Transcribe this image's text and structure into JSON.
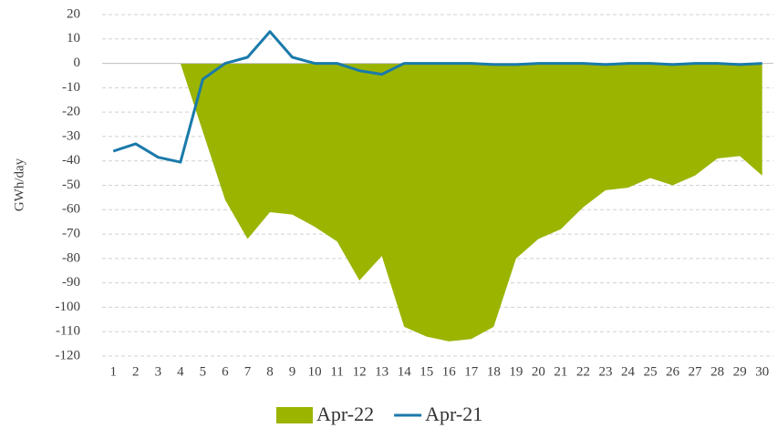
{
  "chart_data": {
    "type": "area-line",
    "y_label": "GWh/day",
    "categories": [
      "1",
      "2",
      "3",
      "4",
      "5",
      "6",
      "7",
      "8",
      "9",
      "10",
      "11",
      "12",
      "13",
      "14",
      "15",
      "16",
      "17",
      "18",
      "19",
      "20",
      "21",
      "22",
      "23",
      "24",
      "25",
      "26",
      "27",
      "28",
      "29",
      "30"
    ],
    "series": [
      {
        "name": "Apr-22",
        "type": "area",
        "color": "#9ab400",
        "values": [
          null,
          null,
          null,
          0,
          -28,
          -56,
          -72,
          -61,
          -62,
          -67,
          -73,
          -89,
          -79,
          -108,
          -112,
          -114,
          -113,
          -108,
          -80,
          -72,
          -68,
          -59,
          -52,
          -51,
          -47,
          -50,
          -46,
          -39,
          -38,
          -46
        ]
      },
      {
        "name": "Apr-21",
        "type": "line",
        "color": "#1a7aaa",
        "values": [
          -36,
          -33,
          -38.5,
          -40.5,
          -6.5,
          0,
          2.5,
          13,
          2.5,
          0,
          0,
          -3,
          -4.5,
          0,
          0,
          0,
          0,
          -0.5,
          -0.5,
          0,
          0,
          0,
          -0.5,
          0,
          0,
          -0.5,
          0,
          0,
          -0.5,
          0
        ]
      }
    ],
    "ylim": [
      -120,
      20
    ],
    "yticks": [
      20,
      10,
      0,
      -10,
      -20,
      -30,
      -40,
      -50,
      -60,
      -70,
      -80,
      -90,
      -100,
      -110,
      -120
    ],
    "grid": true,
    "legend": "bottom"
  }
}
